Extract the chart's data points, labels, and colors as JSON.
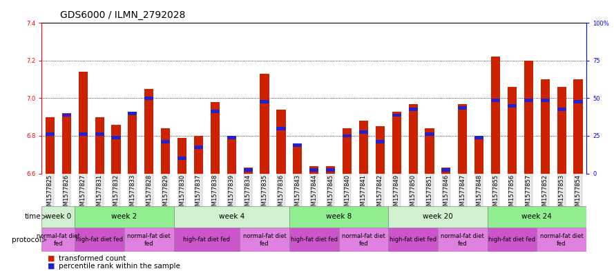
{
  "title": "GDS6000 / ILMN_2792028",
  "samples": [
    "GSM1577825",
    "GSM1577826",
    "GSM1577827",
    "GSM1577831",
    "GSM1577832",
    "GSM1577833",
    "GSM1577828",
    "GSM1577829",
    "GSM1577830",
    "GSM1577837",
    "GSM1577838",
    "GSM1577839",
    "GSM1577834",
    "GSM1577835",
    "GSM1577836",
    "GSM1577843",
    "GSM1577844",
    "GSM1577845",
    "GSM1577840",
    "GSM1577841",
    "GSM1577842",
    "GSM1577849",
    "GSM1577850",
    "GSM1577851",
    "GSM1577846",
    "GSM1577847",
    "GSM1577848",
    "GSM1577855",
    "GSM1577856",
    "GSM1577857",
    "GSM1577852",
    "GSM1577853",
    "GSM1577854"
  ],
  "red_values": [
    6.9,
    6.92,
    7.14,
    6.9,
    6.86,
    6.92,
    7.05,
    6.84,
    6.79,
    6.8,
    6.98,
    6.79,
    6.63,
    7.13,
    6.94,
    6.76,
    6.64,
    6.64,
    6.84,
    6.88,
    6.85,
    6.93,
    6.97,
    6.84,
    6.63,
    6.97,
    6.79,
    7.22,
    7.06,
    7.2,
    7.1,
    7.06,
    7.1
  ],
  "blue_values": [
    6.81,
    6.91,
    6.81,
    6.81,
    6.79,
    6.92,
    7.0,
    6.77,
    6.68,
    6.74,
    6.93,
    6.79,
    6.62,
    6.98,
    6.84,
    6.75,
    6.62,
    6.62,
    6.8,
    6.82,
    6.77,
    6.91,
    6.94,
    6.81,
    6.62,
    6.95,
    6.79,
    6.99,
    6.96,
    6.99,
    6.99,
    6.94,
    6.98
  ],
  "ylim_left": [
    6.6,
    7.4
  ],
  "ylim_right": [
    0,
    100
  ],
  "yticks_left": [
    6.6,
    6.8,
    7.0,
    7.2,
    7.4
  ],
  "yticks_right": [
    0,
    25,
    50,
    75,
    100
  ],
  "ytick_labels_right": [
    "0",
    "25",
    "50",
    "75",
    "100%"
  ],
  "time_groups": [
    {
      "label": "week 0",
      "start": 0,
      "end": 2,
      "color": "#d0f0d0"
    },
    {
      "label": "week 2",
      "start": 2,
      "end": 8,
      "color": "#90ee90"
    },
    {
      "label": "week 4",
      "start": 8,
      "end": 15,
      "color": "#d0f0d0"
    },
    {
      "label": "week 8",
      "start": 15,
      "end": 21,
      "color": "#90ee90"
    },
    {
      "label": "week 20",
      "start": 21,
      "end": 27,
      "color": "#d0f0d0"
    },
    {
      "label": "week 24",
      "start": 27,
      "end": 33,
      "color": "#90ee90"
    }
  ],
  "protocol_groups": [
    {
      "label": "normal-fat diet\nfed",
      "start": 0,
      "end": 2,
      "color": "#e080e0"
    },
    {
      "label": "high-fat diet fed",
      "start": 2,
      "end": 5,
      "color": "#cc55cc"
    },
    {
      "label": "normal-fat diet\nfed",
      "start": 5,
      "end": 8,
      "color": "#e080e0"
    },
    {
      "label": "high-fat diet fed",
      "start": 8,
      "end": 12,
      "color": "#cc55cc"
    },
    {
      "label": "normal-fat diet\nfed",
      "start": 12,
      "end": 15,
      "color": "#e080e0"
    },
    {
      "label": "high-fat diet fed",
      "start": 15,
      "end": 18,
      "color": "#cc55cc"
    },
    {
      "label": "normal-fat diet\nfed",
      "start": 18,
      "end": 21,
      "color": "#e080e0"
    },
    {
      "label": "high-fat diet fed",
      "start": 21,
      "end": 24,
      "color": "#cc55cc"
    },
    {
      "label": "normal-fat diet\nfed",
      "start": 24,
      "end": 27,
      "color": "#e080e0"
    },
    {
      "label": "high-fat diet fed",
      "start": 27,
      "end": 30,
      "color": "#cc55cc"
    },
    {
      "label": "normal-fat diet\nfed",
      "start": 30,
      "end": 33,
      "color": "#e080e0"
    }
  ],
  "bar_color_red": "#cc2200",
  "bar_color_blue": "#2222cc",
  "bar_width": 0.55,
  "title_fontsize": 10,
  "tick_fontsize": 6.0,
  "label_fontsize": 7.5
}
